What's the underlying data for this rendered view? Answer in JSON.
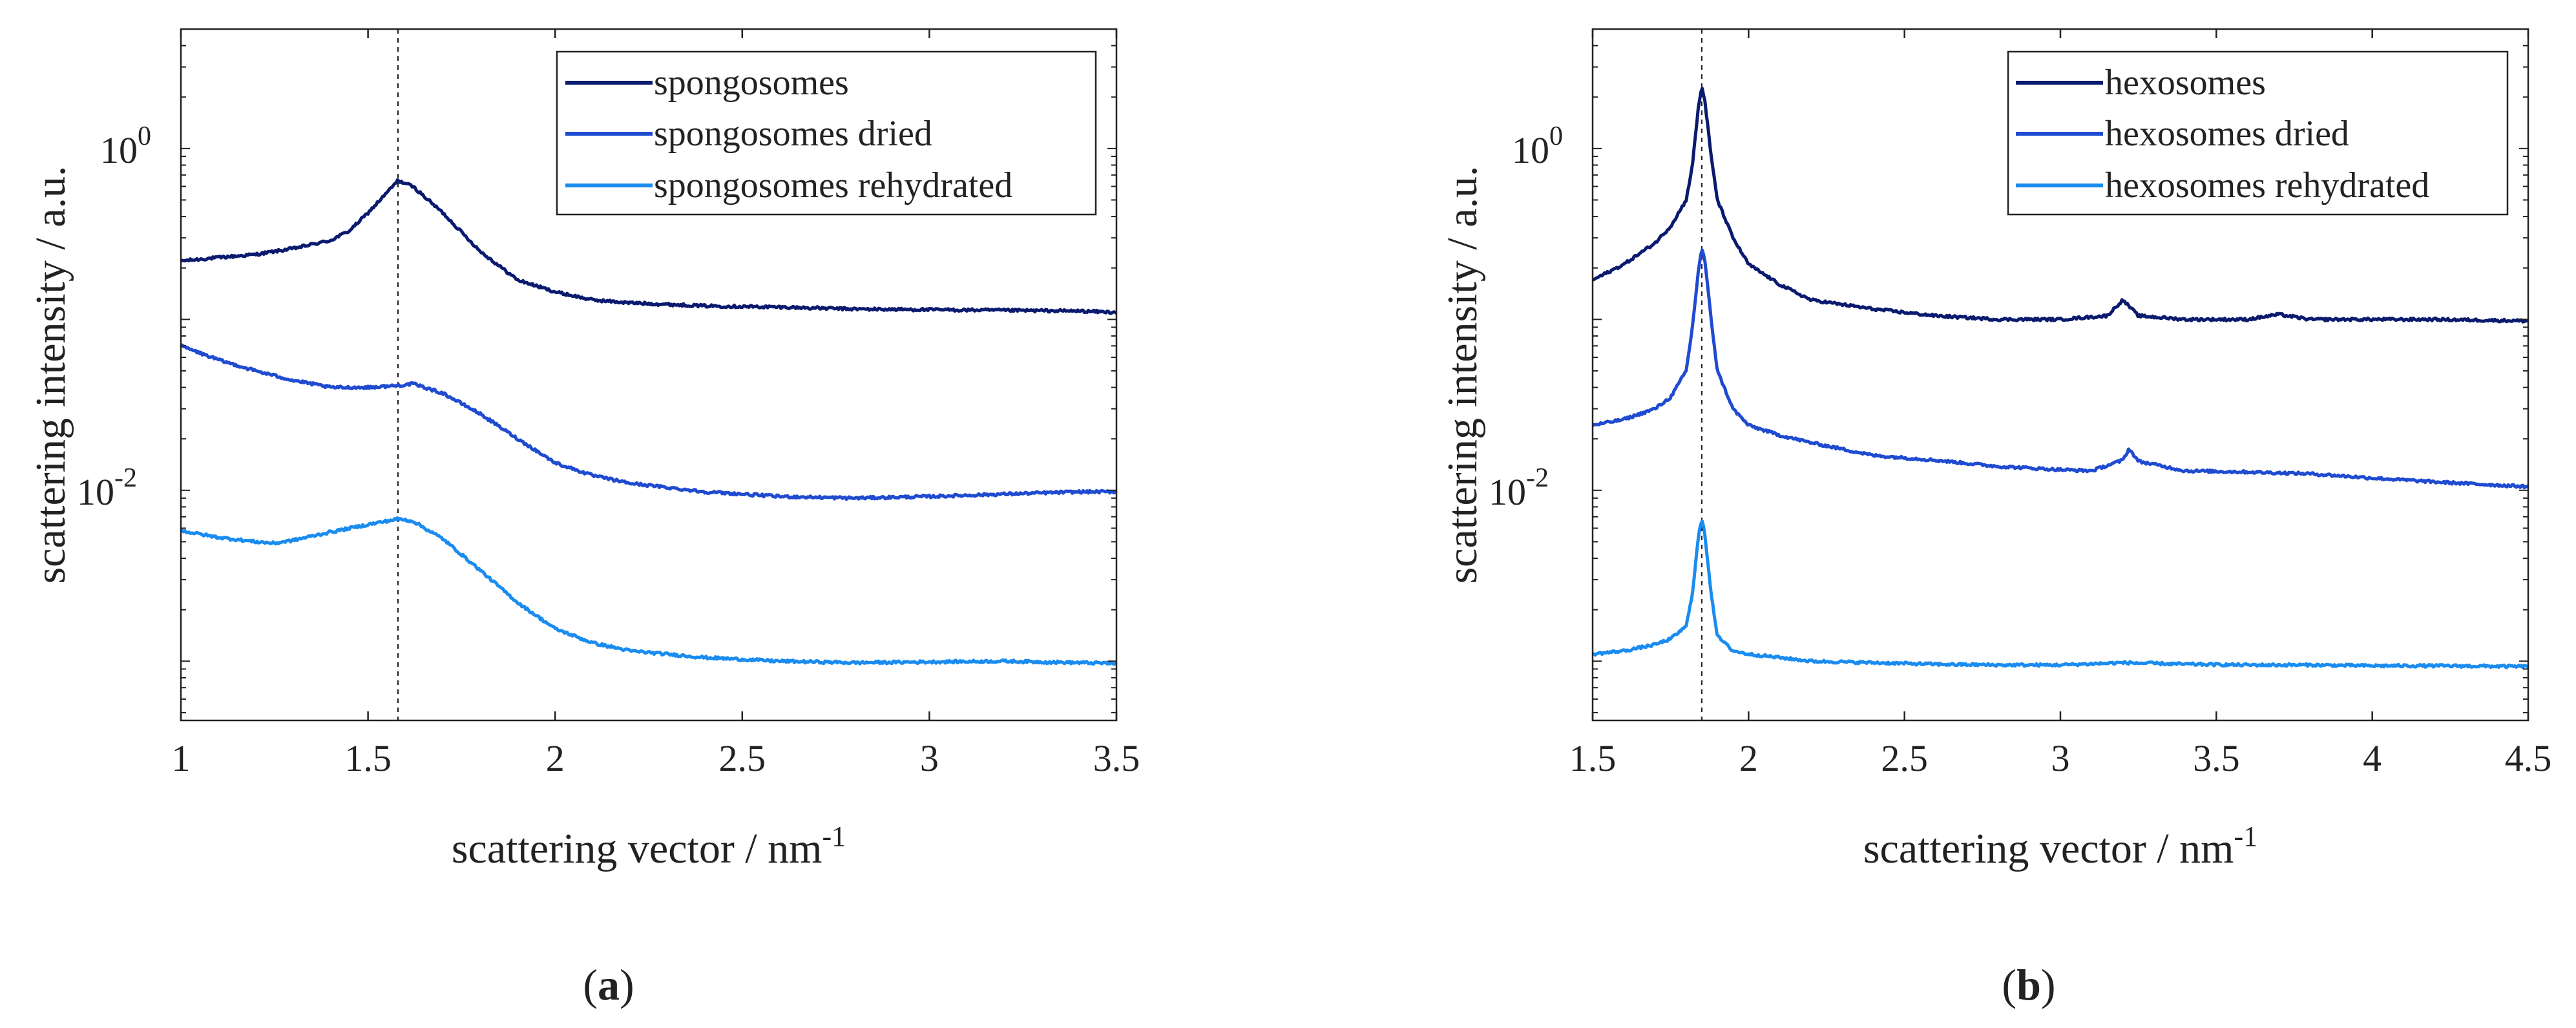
{
  "figure": {
    "panels": [
      {
        "label_open": "(",
        "letter": "a",
        "label_close": ")"
      },
      {
        "label_open": "(",
        "letter": "b",
        "label_close": ")"
      }
    ]
  },
  "chart_data": [
    {
      "type": "line",
      "panel": "a",
      "title": "",
      "xlabel": "scattering vector / nm",
      "xlabel_exponent": "-1",
      "ylabel": "scattering intensity / a.u.",
      "yscale": "log",
      "xlim": [
        1,
        3.5
      ],
      "ylim": [
        0.00045,
        5
      ],
      "xticks": [
        1,
        1.5,
        2,
        2.5,
        3,
        3.5
      ],
      "xtick_labels": [
        "1",
        "1.5",
        "2",
        "2.5",
        "3",
        "3.5"
      ],
      "yticks": [
        1,
        0.01
      ],
      "ytick_labels": [
        {
          "base": "10",
          "exp": "0"
        },
        {
          "base": "10",
          "exp": "-2"
        }
      ],
      "reference_line_x": 1.58,
      "legend_position": "top-right",
      "series": [
        {
          "name": "spongosomes",
          "color": "#0a1a6e",
          "x": [
            1.0,
            1.1,
            1.2,
            1.3,
            1.4,
            1.45,
            1.5,
            1.55,
            1.58,
            1.62,
            1.7,
            1.8,
            1.9,
            2.0,
            2.1,
            2.2,
            2.4,
            2.6,
            2.8,
            3.0,
            3.2,
            3.4,
            3.5
          ],
          "y": [
            0.22,
            0.23,
            0.24,
            0.26,
            0.29,
            0.33,
            0.42,
            0.55,
            0.65,
            0.6,
            0.42,
            0.25,
            0.17,
            0.145,
            0.13,
            0.125,
            0.12,
            0.118,
            0.115,
            0.114,
            0.113,
            0.112,
            0.11
          ]
        },
        {
          "name": "spongosomes dried",
          "color": "#1f4bd1",
          "x": [
            1.0,
            1.1,
            1.2,
            1.3,
            1.4,
            1.5,
            1.58,
            1.62,
            1.7,
            1.8,
            1.9,
            2.0,
            2.1,
            2.2,
            2.4,
            2.6,
            2.8,
            3.0,
            3.2,
            3.4,
            3.5
          ],
          "y": [
            0.07,
            0.058,
            0.05,
            0.044,
            0.04,
            0.04,
            0.041,
            0.042,
            0.037,
            0.028,
            0.02,
            0.0145,
            0.0122,
            0.011,
            0.0098,
            0.0092,
            0.009,
            0.0092,
            0.0095,
            0.0098,
            0.0098
          ]
        },
        {
          "name": "spongosomes rehydrated",
          "color": "#1a8cf0",
          "x": [
            1.0,
            1.1,
            1.2,
            1.25,
            1.3,
            1.4,
            1.5,
            1.58,
            1.62,
            1.7,
            1.8,
            1.9,
            2.0,
            2.1,
            2.2,
            2.4,
            2.6,
            2.8,
            3.0,
            3.2,
            3.4,
            3.5
          ],
          "y": [
            0.0058,
            0.0053,
            0.005,
            0.0049,
            0.0051,
            0.0057,
            0.0063,
            0.0068,
            0.0066,
            0.0052,
            0.0034,
            0.0022,
            0.00155,
            0.00128,
            0.00115,
            0.00105,
            0.001,
            0.00098,
            0.00099,
            0.001,
            0.00098,
            0.00097
          ]
        }
      ]
    },
    {
      "type": "line",
      "panel": "b",
      "title": "",
      "xlabel": "scattering vector / nm",
      "xlabel_exponent": "-1",
      "ylabel": "scattering intensity / a.u.",
      "yscale": "log",
      "xlim": [
        1.5,
        4.5
      ],
      "ylim": [
        0.00045,
        5
      ],
      "xticks": [
        1.5,
        2,
        2.5,
        3,
        3.5,
        4,
        4.5
      ],
      "xtick_labels": [
        "1.5",
        "2",
        "2.5",
        "3",
        "3.5",
        "4",
        "4.5"
      ],
      "yticks": [
        1,
        0.01
      ],
      "ytick_labels": [
        {
          "base": "10",
          "exp": "0"
        },
        {
          "base": "10",
          "exp": "-2"
        }
      ],
      "reference_line_x": 1.85,
      "legend_position": "top-right",
      "series": [
        {
          "name": "hexosomes",
          "color": "#0a1a6e",
          "x": [
            1.5,
            1.6,
            1.7,
            1.75,
            1.8,
            1.82,
            1.84,
            1.85,
            1.86,
            1.88,
            1.9,
            1.95,
            2.0,
            2.1,
            2.2,
            2.4,
            2.6,
            2.8,
            3.0,
            3.15,
            3.2,
            3.25,
            3.4,
            3.6,
            3.7,
            3.8,
            4.0,
            4.2,
            4.5
          ],
          "y": [
            0.17,
            0.21,
            0.28,
            0.35,
            0.5,
            0.8,
            1.8,
            2.3,
            1.9,
            0.9,
            0.5,
            0.3,
            0.21,
            0.16,
            0.13,
            0.115,
            0.105,
            0.1,
            0.1,
            0.105,
            0.13,
            0.105,
            0.1,
            0.1,
            0.107,
            0.1,
            0.1,
            0.1,
            0.098
          ]
        },
        {
          "name": "hexosomes dried",
          "color": "#1f4bd1",
          "x": [
            1.5,
            1.6,
            1.7,
            1.75,
            1.8,
            1.82,
            1.84,
            1.85,
            1.86,
            1.88,
            1.9,
            1.95,
            2.0,
            2.1,
            2.2,
            2.4,
            2.6,
            2.8,
            3.0,
            3.1,
            3.2,
            3.22,
            3.25,
            3.4,
            3.6,
            3.8,
            4.0,
            4.2,
            4.5
          ],
          "y": [
            0.024,
            0.026,
            0.03,
            0.035,
            0.05,
            0.09,
            0.2,
            0.26,
            0.22,
            0.1,
            0.05,
            0.03,
            0.024,
            0.021,
            0.019,
            0.016,
            0.015,
            0.0138,
            0.0132,
            0.013,
            0.015,
            0.0175,
            0.0148,
            0.013,
            0.0128,
            0.0125,
            0.0118,
            0.0112,
            0.0105
          ]
        },
        {
          "name": "hexosomes rehydrated",
          "color": "#1a8cf0",
          "x": [
            1.5,
            1.6,
            1.7,
            1.75,
            1.8,
            1.82,
            1.84,
            1.85,
            1.86,
            1.88,
            1.9,
            1.95,
            2.0,
            2.1,
            2.2,
            2.4,
            2.6,
            2.8,
            3.0,
            3.2,
            3.4,
            3.6,
            3.8,
            4.0,
            4.2,
            4.5
          ],
          "y": [
            0.0011,
            0.00115,
            0.00125,
            0.00135,
            0.0016,
            0.0025,
            0.0055,
            0.0068,
            0.0055,
            0.0025,
            0.0014,
            0.00115,
            0.0011,
            0.00105,
            0.001,
            0.00098,
            0.00096,
            0.00095,
            0.00095,
            0.00098,
            0.00096,
            0.00095,
            0.00095,
            0.00094,
            0.00094,
            0.00093
          ]
        }
      ]
    }
  ]
}
